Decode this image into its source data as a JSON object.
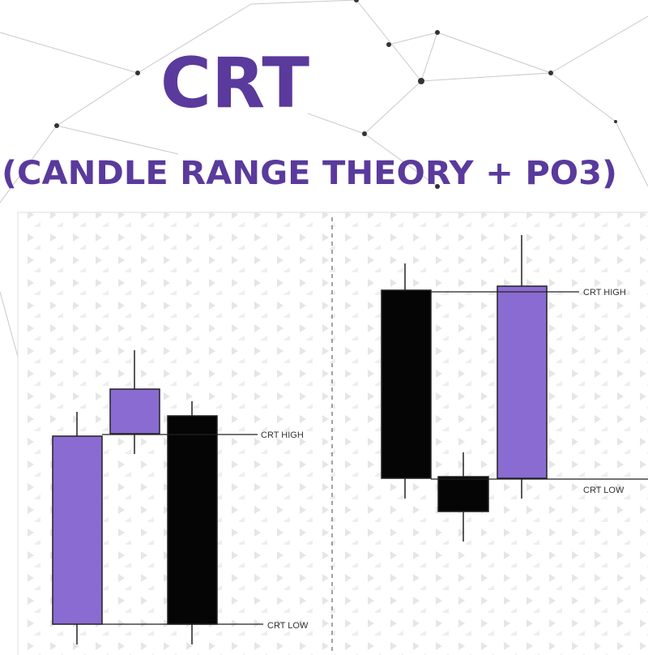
{
  "header": {
    "title": "CRT",
    "subtitle": "(CANDLE RANGE THEORY + PO3)"
  },
  "panels": [
    {
      "high_label": "CRT HIGH",
      "low_label": "CRT LOW"
    },
    {
      "high_label": "CRT HIGH",
      "low_label": "CRT LOW"
    }
  ]
}
